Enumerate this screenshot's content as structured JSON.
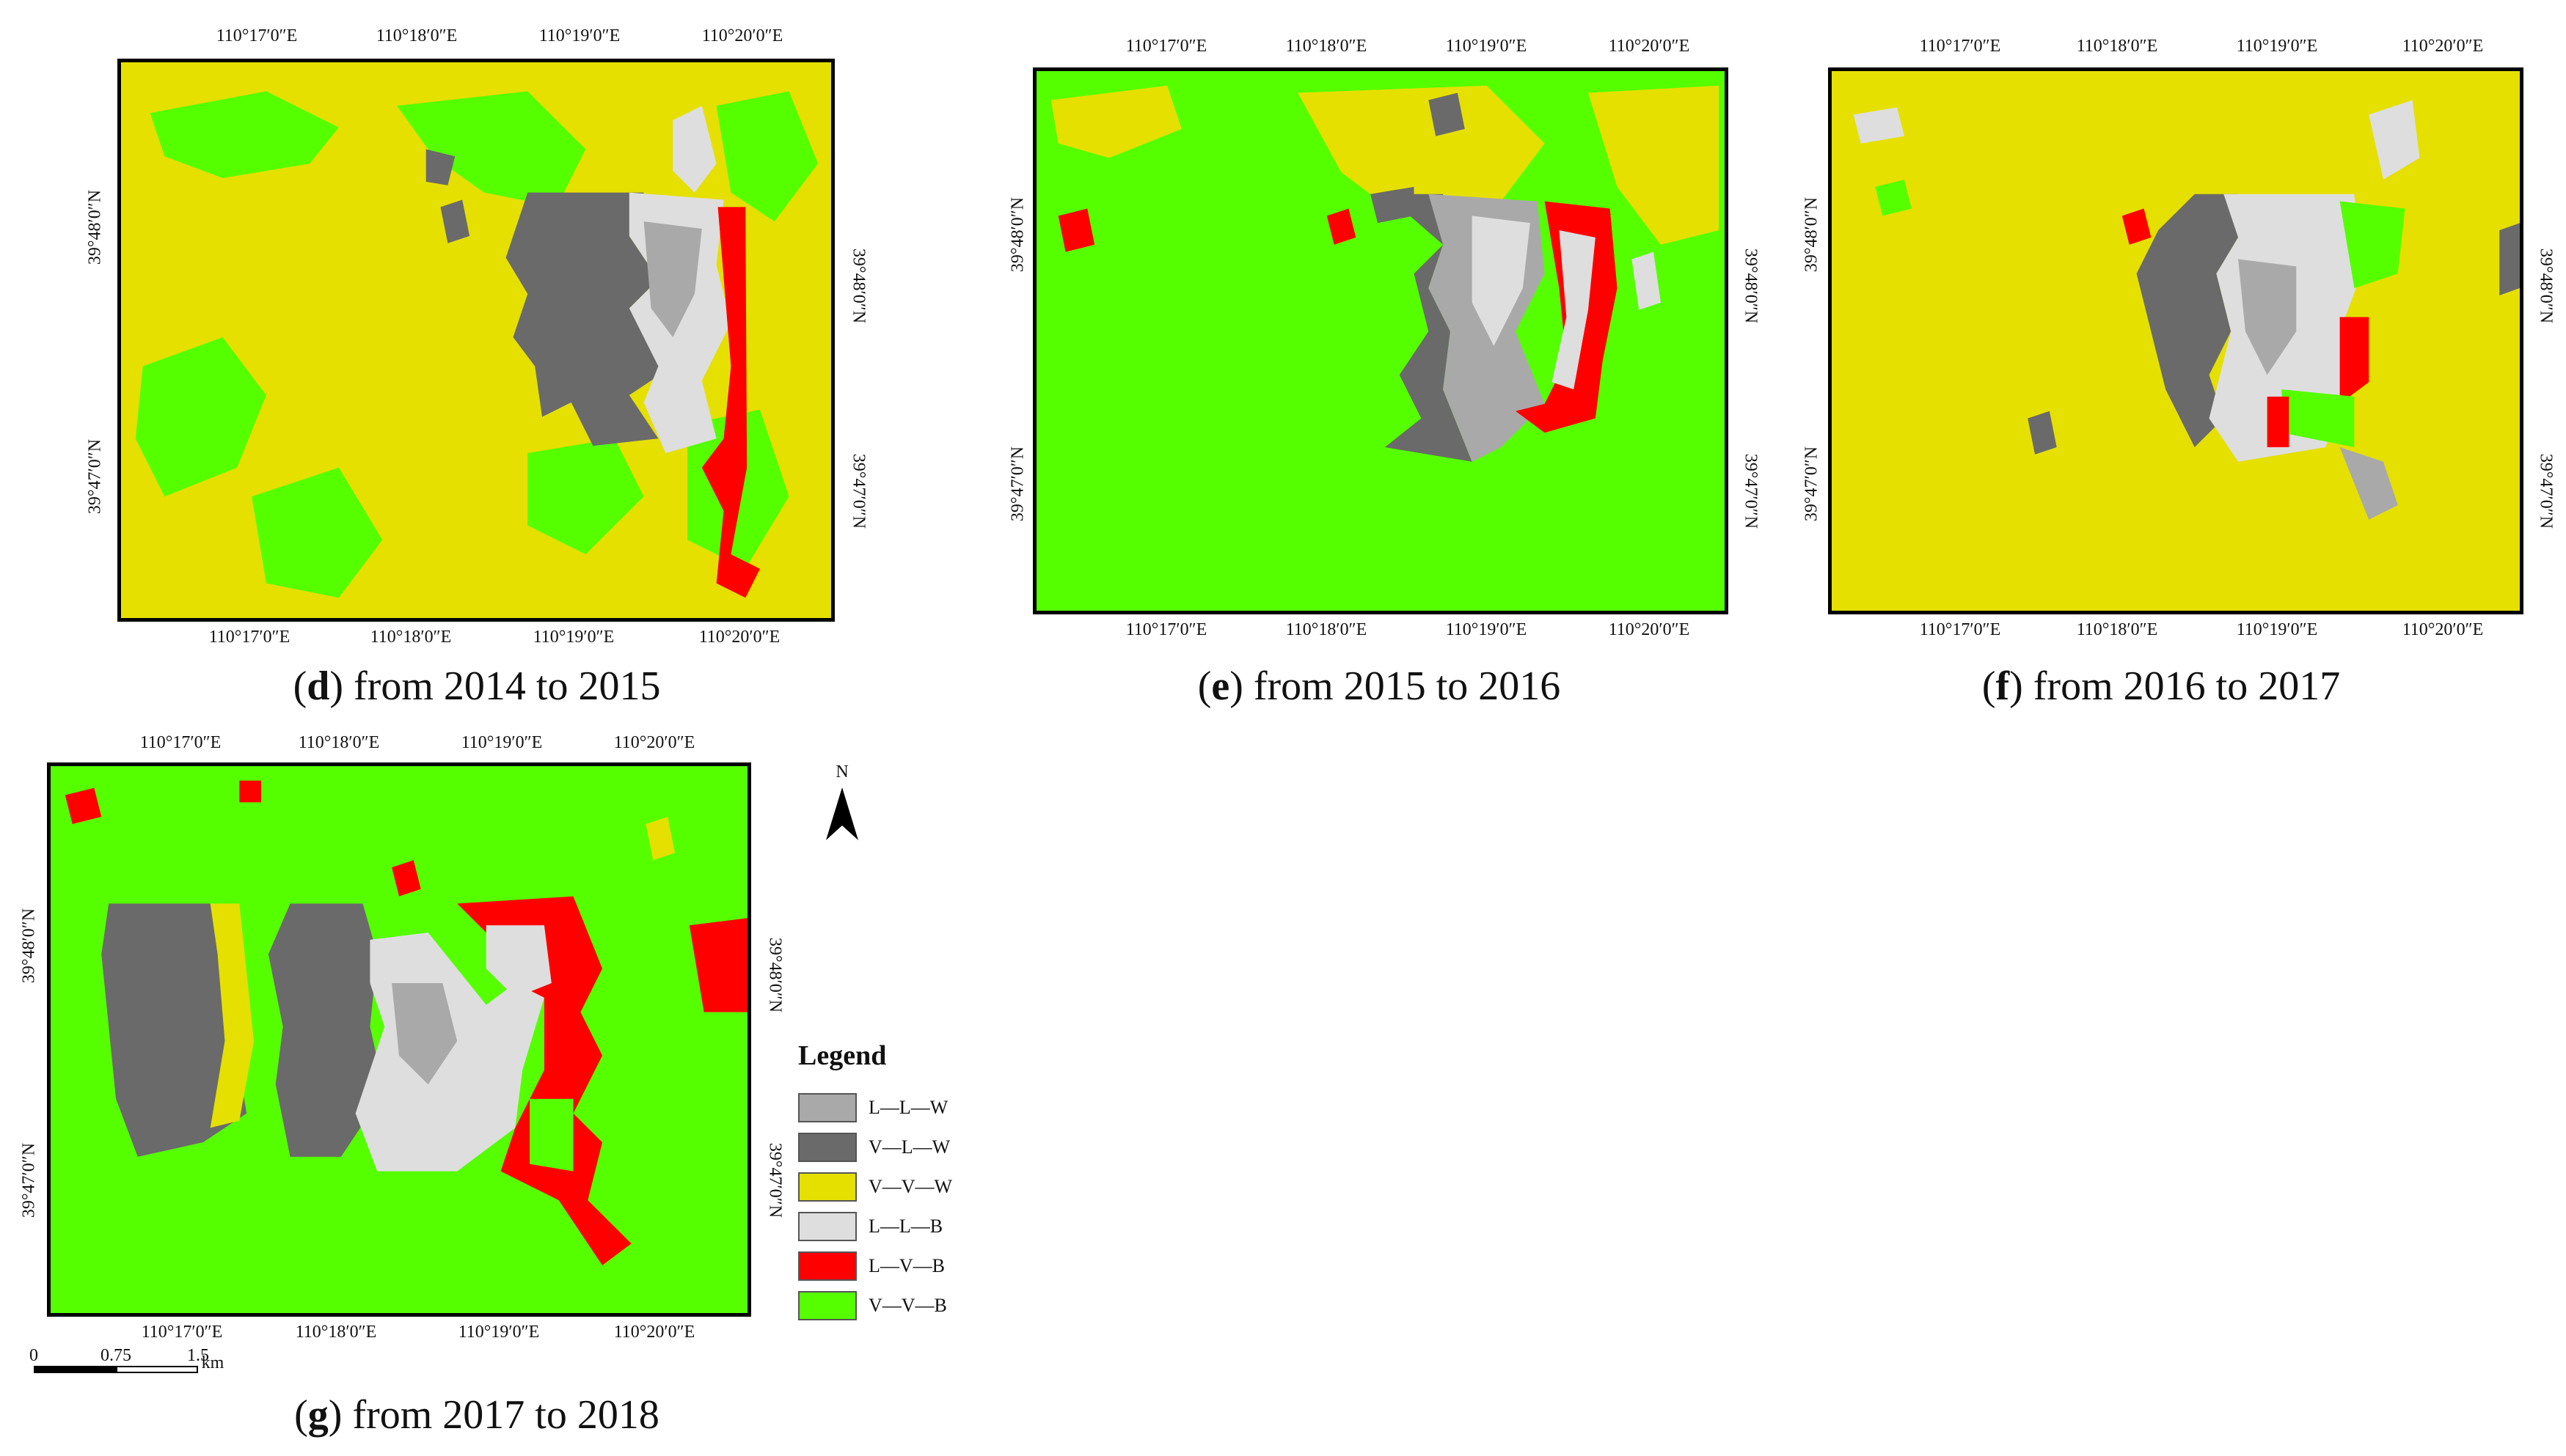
{
  "colors": {
    "L-L-W": "#a9a9a9",
    "V-L-W": "#6a6a6a",
    "V-V-W": "#e5e000",
    "L-L-B": "#dedede",
    "L-V-B": "#ff0000",
    "V-V-B": "#55ff00"
  },
  "panels": [
    {
      "id": "d",
      "caption_letter": "d",
      "caption_text": ") from 2014 to 2015",
      "background": "V-V-W",
      "lon_ticks_top": [
        "110°17′0″E",
        "110°18′0″E",
        "110°19′0″E",
        "110°20′0″E"
      ],
      "lon_ticks_bottom": [
        "110°17′0″E",
        "110°18′0″E",
        "110°19′0″E",
        "110°20′0″E"
      ],
      "lat_ticks_left": [
        "39°48′0″N",
        "39°47′0″N"
      ],
      "lat_ticks_right": [
        "39°48′0″N",
        "39°47′0″N"
      ]
    },
    {
      "id": "e",
      "caption_letter": "e",
      "caption_text": ") from 2015 to 2016",
      "background": "V-V-B",
      "lon_ticks_top": [
        "110°17′0″E",
        "110°18′0″E",
        "110°19′0″E",
        "110°20′0″E"
      ],
      "lon_ticks_bottom": [
        "110°17′0″E",
        "110°18′0″E",
        "110°19′0″E",
        "110°20′0″E"
      ],
      "lat_ticks_left": [
        "39°48′0″N",
        "39°47′0″N"
      ],
      "lat_ticks_right": [
        "39°48′0″N",
        "39°47′0″N"
      ]
    },
    {
      "id": "f",
      "caption_letter": "f",
      "caption_text": ") from 2016 to 2017",
      "background": "V-V-W",
      "lon_ticks_top": [
        "110°17′0″E",
        "110°18′0″E",
        "110°19′0″E",
        "110°20′0″E"
      ],
      "lon_ticks_bottom": [
        "110°17′0″E",
        "110°18′0″E",
        "110°19′0″E",
        "110°20′0″E"
      ],
      "lat_ticks_left": [
        "39°48′0″N",
        "39°47′0″N"
      ],
      "lat_ticks_right": [
        "39°48′0″N",
        "39°47′0″N"
      ]
    },
    {
      "id": "g",
      "caption_letter": "g",
      "caption_text": ") from 2017 to 2018",
      "background": "V-V-B",
      "lon_ticks_top": [
        "110°17′0″E",
        "110°18′0″E",
        "110°19′0″E",
        "110°20′0″E"
      ],
      "lon_ticks_bottom": [
        "110°17′0″E",
        "110°18′0″E",
        "110°19′0″E",
        "110°20′0″E"
      ],
      "lat_ticks_left": [
        "39°48′0″N",
        "39°47′0″N"
      ],
      "lat_ticks_right": [
        "39°48′0″N",
        "39°47′0″N"
      ]
    }
  ],
  "legend": {
    "title": "Legend",
    "items": [
      {
        "label": "L—L—W",
        "key": "L-L-W"
      },
      {
        "label": "V—L—W",
        "key": "V-L-W"
      },
      {
        "label": "V—V—W",
        "key": "V-V-W"
      },
      {
        "label": "L—L—B",
        "key": "L-L-B"
      },
      {
        "label": "L—V—B",
        "key": "L-V-B"
      },
      {
        "label": "V—V—B",
        "key": "V-V-B"
      }
    ]
  },
  "north_arrow": {
    "letter": "N",
    "icon": "north-arrow-icon"
  },
  "scale_bar": {
    "labels": [
      "0",
      "0.75",
      "1.5"
    ],
    "unit": "km"
  }
}
